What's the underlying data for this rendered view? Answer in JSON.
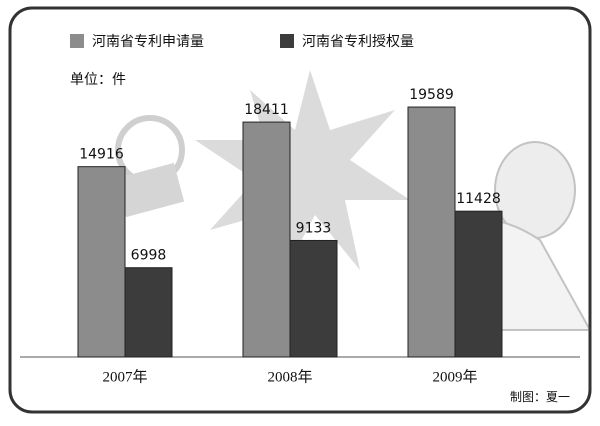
{
  "chart_data": {
    "type": "bar",
    "unit_label": "单位：件",
    "credit": "制图：夏一",
    "categories": [
      "2007年",
      "2008年",
      "2009年"
    ],
    "series": [
      {
        "name": "河南省专利申请量",
        "color": "#8c8c8c",
        "values": [
          14916,
          18411,
          19589
        ]
      },
      {
        "name": "河南省专利授权量",
        "color": "#3c3c3c",
        "values": [
          6998,
          9133,
          11428
        ]
      }
    ],
    "grid": false
  }
}
